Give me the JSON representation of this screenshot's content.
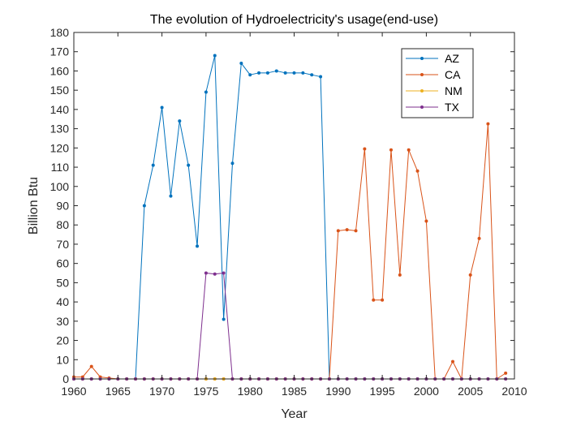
{
  "chart_data": {
    "type": "line",
    "title": "The evolution of Hydroelectricity's usage(end-use)",
    "xlabel": "Year",
    "ylabel": "Billion Btu",
    "xlim": [
      1960,
      2010
    ],
    "ylim": [
      0,
      180
    ],
    "xticks": [
      1960,
      1965,
      1970,
      1975,
      1980,
      1985,
      1990,
      1995,
      2000,
      2005,
      2010
    ],
    "yticks": [
      0,
      10,
      20,
      30,
      40,
      50,
      60,
      70,
      80,
      90,
      100,
      110,
      120,
      130,
      140,
      150,
      160,
      170,
      180
    ],
    "grid": false,
    "legend_location": "top-right",
    "x": [
      1960,
      1961,
      1962,
      1963,
      1964,
      1965,
      1966,
      1967,
      1968,
      1969,
      1970,
      1971,
      1972,
      1973,
      1974,
      1975,
      1976,
      1977,
      1978,
      1979,
      1980,
      1981,
      1982,
      1983,
      1984,
      1985,
      1986,
      1987,
      1988,
      1989,
      1990,
      1991,
      1992,
      1993,
      1994,
      1995,
      1996,
      1997,
      1998,
      1999,
      2000,
      2001,
      2002,
      2003,
      2004,
      2005,
      2006,
      2007,
      2008,
      2009
    ],
    "series": [
      {
        "name": "AZ",
        "color": "#0072BD",
        "values": [
          0,
          0,
          0,
          0,
          0,
          0,
          0,
          0,
          90,
          111,
          141,
          95,
          134,
          111,
          69,
          149,
          168,
          31,
          112,
          164,
          158,
          159,
          159,
          160,
          159,
          159,
          159,
          158,
          157,
          0,
          0,
          0,
          0,
          0,
          0,
          0,
          0,
          0,
          0,
          0,
          0,
          0,
          0,
          0,
          0,
          0,
          0,
          0,
          0,
          0
        ]
      },
      {
        "name": "CA",
        "color": "#D95319",
        "values": [
          1,
          1,
          6.5,
          1,
          0.5,
          0,
          0,
          0,
          0,
          0,
          0,
          0,
          0,
          0,
          0,
          0,
          0,
          0,
          0,
          0,
          0,
          0,
          0,
          0,
          0,
          0,
          0,
          0,
          0,
          0,
          77,
          77.5,
          77,
          119.5,
          41,
          41,
          119,
          54,
          119,
          108,
          82,
          0,
          0,
          9,
          0,
          54,
          73,
          132.5,
          0,
          3
        ]
      },
      {
        "name": "NM",
        "color": "#EDB120",
        "values": [
          0,
          0,
          0,
          0,
          0,
          0,
          0,
          0,
          0,
          0,
          0,
          0,
          0,
          0,
          0,
          0,
          0,
          0,
          0,
          0,
          0,
          0,
          0,
          0,
          0,
          0,
          0,
          0,
          0,
          0,
          0,
          0,
          0,
          0,
          0,
          0,
          0,
          0,
          0,
          0,
          0,
          0,
          0,
          0,
          0,
          0,
          0,
          0,
          0,
          0
        ]
      },
      {
        "name": "TX",
        "color": "#7E2F8E",
        "values": [
          0,
          0,
          0,
          0,
          0,
          0,
          0,
          0,
          0,
          0,
          0,
          0,
          0,
          0,
          0,
          55,
          54.5,
          55,
          0,
          0,
          0,
          0,
          0,
          0,
          0,
          0,
          0,
          0,
          0,
          0,
          0,
          0,
          0,
          0,
          0,
          0,
          0,
          0,
          0,
          0,
          0,
          0,
          0,
          0,
          0,
          0,
          0,
          0,
          0,
          0
        ]
      }
    ]
  }
}
